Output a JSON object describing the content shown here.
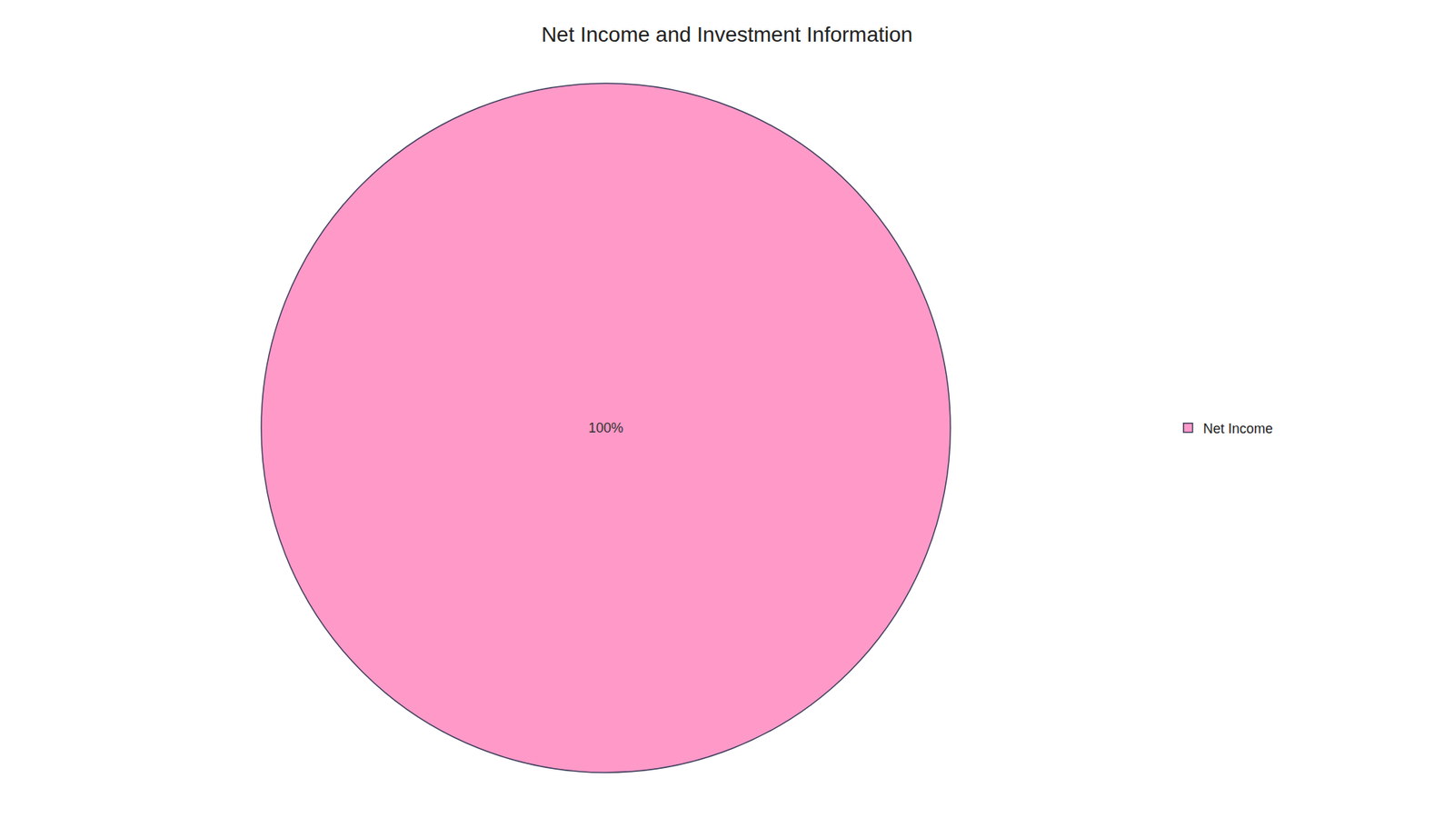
{
  "chart_data": {
    "type": "pie",
    "title": "Net Income and Investment Information",
    "categories": [
      "Net Income"
    ],
    "values": [
      100
    ],
    "value_labels": [
      "100%"
    ],
    "colors": [
      "#FF99C8"
    ],
    "data_labels": true,
    "legend": "right"
  }
}
